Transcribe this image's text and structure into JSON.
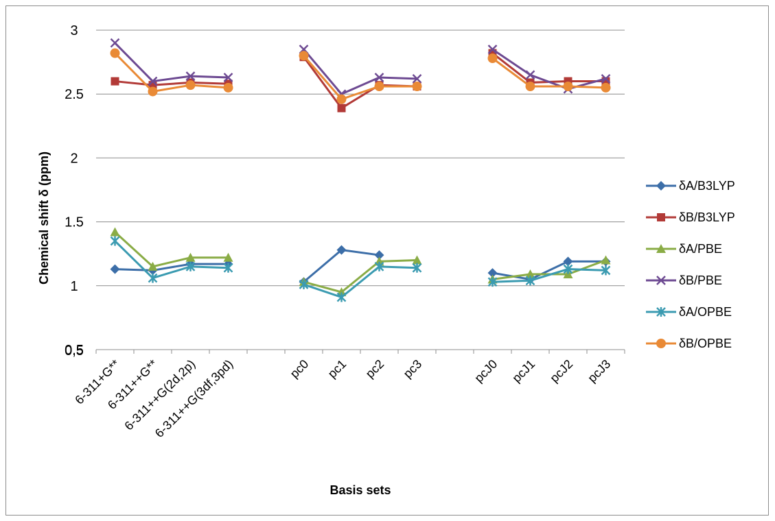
{
  "chart_data": {
    "type": "line",
    "title": "",
    "xlabel": "Basis sets",
    "ylabel": "Chemical shift δ (ppm)",
    "ylim": [
      0.5,
      3
    ],
    "yticks": [
      "0.5",
      "1",
      "1.5",
      "2",
      "2.5",
      "3"
    ],
    "bottom_tick_label": "0,5",
    "grid": true,
    "legend_position": "right",
    "categories": [
      "6-311+G**",
      "6-311++G**",
      "6-311++G(2d,2p)",
      "6-311++G(3df,3pd)",
      "",
      "pc0",
      "pc1",
      "pc2",
      "pc3",
      "",
      "pcJ0",
      "pcJ1",
      "pcJ2",
      "pcJ3"
    ],
    "series": [
      {
        "name": "δA/B3LYP",
        "color": "#3c6ea8",
        "marker": "diamond",
        "values": [
          1.13,
          1.12,
          1.17,
          1.17,
          null,
          1.03,
          1.28,
          1.24,
          null,
          null,
          1.1,
          1.05,
          1.19,
          1.19
        ]
      },
      {
        "name": "δB/B3LYP",
        "color": "#b23a37",
        "marker": "square",
        "values": [
          2.6,
          2.57,
          2.59,
          2.58,
          null,
          2.79,
          2.39,
          2.57,
          2.56,
          null,
          2.82,
          2.59,
          2.6,
          2.6
        ]
      },
      {
        "name": "δA/PBE",
        "color": "#8aac46",
        "marker": "triangle",
        "values": [
          1.42,
          1.15,
          1.22,
          1.22,
          null,
          1.03,
          0.95,
          1.19,
          1.2,
          null,
          1.05,
          1.09,
          1.09,
          1.2
        ]
      },
      {
        "name": "δB/PBE",
        "color": "#6d4a92",
        "marker": "x",
        "values": [
          2.9,
          2.6,
          2.64,
          2.63,
          null,
          2.85,
          2.5,
          2.63,
          2.62,
          null,
          2.85,
          2.65,
          2.54,
          2.62
        ]
      },
      {
        "name": "δA/OPBE",
        "color": "#3b9bb1",
        "marker": "asterisk",
        "values": [
          1.35,
          1.06,
          1.15,
          1.14,
          null,
          1.01,
          0.91,
          1.15,
          1.14,
          null,
          1.03,
          1.04,
          1.13,
          1.12
        ]
      },
      {
        "name": "δB/OPBE",
        "color": "#e98a36",
        "marker": "circle",
        "values": [
          2.82,
          2.52,
          2.57,
          2.55,
          null,
          2.8,
          2.46,
          2.56,
          2.56,
          null,
          2.78,
          2.56,
          2.56,
          2.55
        ]
      }
    ]
  }
}
